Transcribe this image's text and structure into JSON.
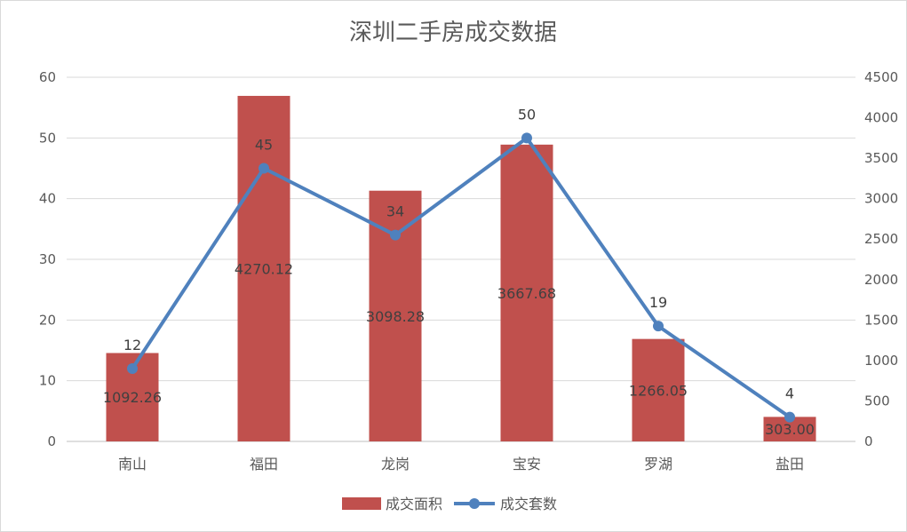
{
  "chart_data": {
    "type": "bar+line",
    "title": "深圳二手房成交数据",
    "categories": [
      "南山",
      "福田",
      "龙岗",
      "宝安",
      "罗湖",
      "盐田"
    ],
    "series": [
      {
        "name": "成交面积",
        "type": "bar",
        "axis": "right",
        "color": "#c0504d",
        "values": [
          1092.26,
          4270.12,
          3098.28,
          3667.68,
          1266.05,
          303.0
        ],
        "labels": [
          "1092.26",
          "4270.12",
          "3098.28",
          "3667.68",
          "1266.05",
          "303.00"
        ]
      },
      {
        "name": "成交套数",
        "type": "line",
        "axis": "left",
        "color": "#4f81bd",
        "values": [
          12,
          45,
          34,
          50,
          19,
          4
        ],
        "labels": [
          "12",
          "45",
          "34",
          "50",
          "19",
          "4"
        ]
      }
    ],
    "left_axis": {
      "min": 0,
      "max": 60,
      "ticks": [
        "0",
        "10",
        "20",
        "30",
        "40",
        "50",
        "60"
      ]
    },
    "right_axis": {
      "min": 0,
      "max": 4500,
      "ticks": [
        "0",
        "500",
        "1000",
        "1500",
        "2000",
        "2500",
        "3000",
        "3500",
        "4000",
        "4500"
      ]
    },
    "grid": true,
    "legend_position": "bottom"
  }
}
